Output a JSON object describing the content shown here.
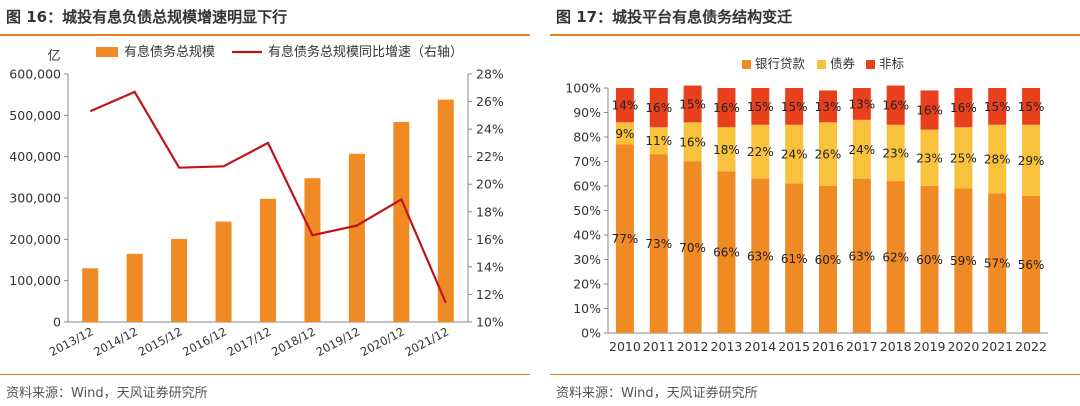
{
  "left": {
    "title": "图 16：城投有息负债总规模增速明显下行",
    "source": "资料来源：Wind，天风证券研究所",
    "y_unit": "亿",
    "colors": {
      "bar": "#F08A24",
      "line": "#C0141B",
      "rule": "#E67E22"
    },
    "chart_data": {
      "type": "bar",
      "categories": [
        "2013/12",
        "2014/12",
        "2015/12",
        "2016/12",
        "2017/12",
        "2018/12",
        "2019/12",
        "2020/12",
        "2021/12"
      ],
      "series": [
        {
          "name": "有息债务总规模",
          "type": "bar",
          "axis": "left",
          "values": [
            130000,
            165000,
            201000,
            243000,
            298000,
            348000,
            407000,
            484000,
            538000
          ]
        },
        {
          "name": "有息债务总规模同比增速（右轴）",
          "type": "line",
          "axis": "right",
          "values": [
            25.3,
            26.7,
            21.2,
            21.3,
            23.0,
            16.3,
            17.0,
            18.9,
            11.4
          ]
        }
      ],
      "ylim": [
        0,
        600000
      ],
      "yticks": [
        "0",
        "100,000",
        "200,000",
        "300,000",
        "400,000",
        "500,000",
        "600,000"
      ],
      "y2lim": [
        10,
        28
      ],
      "y2ticks": [
        "10%",
        "12%",
        "14%",
        "16%",
        "18%",
        "20%",
        "22%",
        "24%",
        "26%",
        "28%"
      ],
      "legend": "top"
    }
  },
  "right": {
    "title": "图 17：城投平台有息债务结构变迁",
    "source": "资料来源：Wind，天风证券研究所",
    "colors": {
      "loan": "#F08A24",
      "bond": "#F9C23C",
      "nonstd": "#E8401C"
    },
    "chart_data": {
      "type": "bar",
      "stacked": true,
      "categories": [
        "2010",
        "2011",
        "2012",
        "2013",
        "2014",
        "2015",
        "2016",
        "2017",
        "2018",
        "2019",
        "2020",
        "2021",
        "2022"
      ],
      "series": [
        {
          "name": "银行贷款",
          "values": [
            77,
            73,
            70,
            66,
            63,
            61,
            60,
            63,
            62,
            60,
            59,
            57,
            56
          ],
          "labels": [
            "77%",
            "73%",
            "70%",
            "66%",
            "63%",
            "61%",
            "60%",
            "63%",
            "62%",
            "60%",
            "59%",
            "57%",
            "56%"
          ]
        },
        {
          "name": "债券",
          "values": [
            9,
            11,
            16,
            18,
            22,
            24,
            26,
            24,
            23,
            23,
            25,
            28,
            29
          ],
          "labels": [
            "9%",
            "11%",
            "16%",
            "18%",
            "22%",
            "24%",
            "26%",
            "24%",
            "23%",
            "23%",
            "25%",
            "28%",
            "29%"
          ]
        },
        {
          "name": "非标",
          "values": [
            14,
            16,
            15,
            16,
            15,
            15,
            13,
            13,
            16,
            16,
            16,
            15,
            15
          ],
          "labels": [
            "14%",
            "16%",
            "15%",
            "16%",
            "15%",
            "15%",
            "13%",
            "13%",
            "16%",
            "16%",
            "16%",
            "15%",
            "15%"
          ]
        }
      ],
      "ylim": [
        0,
        100
      ],
      "yticks": [
        "0%",
        "10%",
        "20%",
        "30%",
        "40%",
        "50%",
        "60%",
        "70%",
        "80%",
        "90%",
        "100%"
      ],
      "legend": "top"
    }
  }
}
